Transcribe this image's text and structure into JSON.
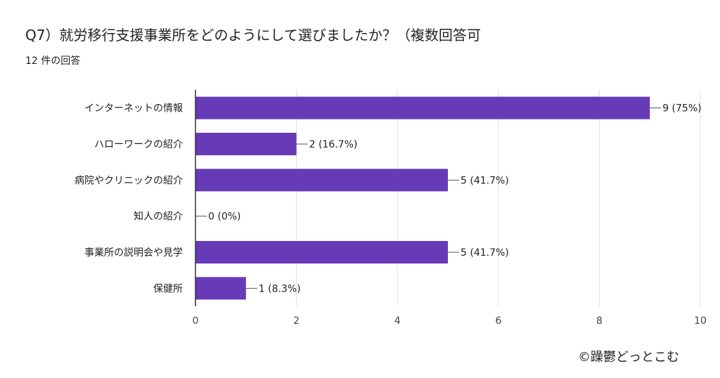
{
  "header": {
    "title": "Q7）就労移行支援事業所をどのようにして選びましたか？（複数回答可",
    "subtitle": "12 件の回答"
  },
  "footer": {
    "credit": "©躁鬱どっとこむ"
  },
  "colors": {
    "bar": "#673ab7",
    "grid": "#e0e0e0",
    "axis": "#333333",
    "text": "#202124"
  },
  "chart_data": {
    "type": "bar",
    "orientation": "horizontal",
    "categories": [
      "インターネットの情報",
      "ハローワークの紹介",
      "病院やクリニックの紹介",
      "知人の紹介",
      "事業所の説明会や見学",
      "保健所"
    ],
    "values": [
      9,
      2,
      5,
      0,
      5,
      1
    ],
    "data_labels": [
      "9 (75%)",
      "2 (16.7%)",
      "5 (41.7%)",
      "0 (0%)",
      "5 (41.7%)",
      "1 (8.3%)"
    ],
    "xlim": [
      0,
      10
    ],
    "xticks": [
      0,
      2,
      4,
      6,
      8,
      10
    ],
    "grid": true,
    "legend": "none"
  }
}
